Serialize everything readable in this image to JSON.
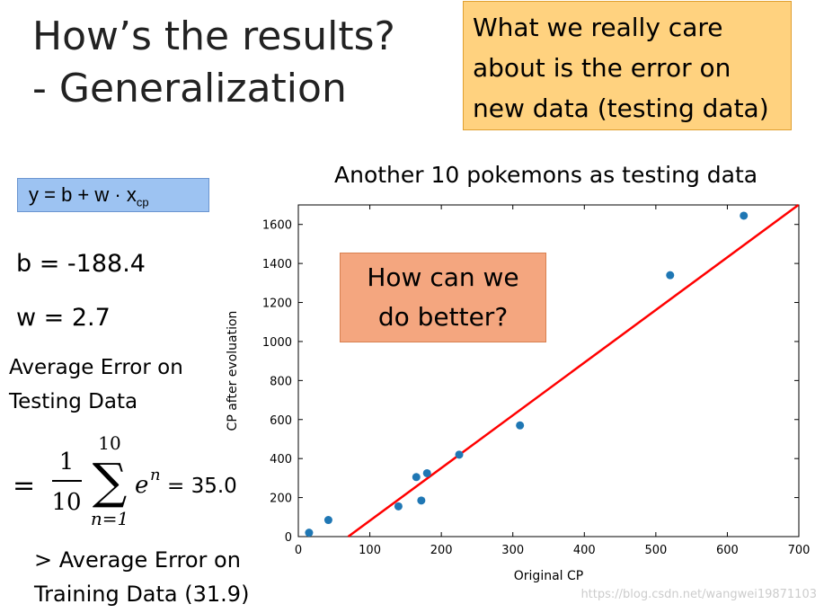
{
  "slide": {
    "title_line1": "How’s the results?",
    "title_line2": "- Generalization",
    "note_line1": "What we really care",
    "note_line2": "about is the error on",
    "note_line3": "new data (testing data)",
    "model_formula": "y = b + w · x",
    "model_formula_sub": "cp",
    "b_text": "b = -188.4",
    "w_text": "w = 2.7",
    "avg_error_line1": "Average Error on",
    "avg_error_line2": "Testing Data",
    "eq_frac_num": "1",
    "eq_frac_den": "10",
    "eq_sum_upper": "10",
    "eq_sum_lower": "n=1",
    "eq_term": "e",
    "eq_term_sup": "n",
    "eq_result": "= 35.0",
    "compare_line1": "> Average Error on",
    "compare_line2": "Training Data (31.9)",
    "question_line1": "How can we",
    "question_line2": "do better?",
    "watermark": "https://blog.csdn.net/wangwei19871103"
  },
  "chart_data": {
    "type": "scatter",
    "title": "Another 10 pokemons as testing data",
    "xlabel": "Original CP",
    "ylabel": "CP after evoluation",
    "xlim": [
      0,
      700
    ],
    "ylim": [
      0,
      1700
    ],
    "xticks": [
      0,
      100,
      200,
      300,
      400,
      500,
      600,
      700
    ],
    "yticks": [
      0,
      200,
      400,
      600,
      800,
      1000,
      1200,
      1400,
      1600
    ],
    "points": [
      {
        "x": 15,
        "y": 20
      },
      {
        "x": 42,
        "y": 85
      },
      {
        "x": 140,
        "y": 155
      },
      {
        "x": 165,
        "y": 305
      },
      {
        "x": 172,
        "y": 185
      },
      {
        "x": 180,
        "y": 325
      },
      {
        "x": 225,
        "y": 420
      },
      {
        "x": 310,
        "y": 570
      },
      {
        "x": 520,
        "y": 1340
      },
      {
        "x": 623,
        "y": 1645
      }
    ],
    "fit_line": {
      "b": -188.4,
      "w": 2.7
    },
    "point_color": "#1f77b4",
    "line_color": "#ff0000",
    "grid": false
  }
}
